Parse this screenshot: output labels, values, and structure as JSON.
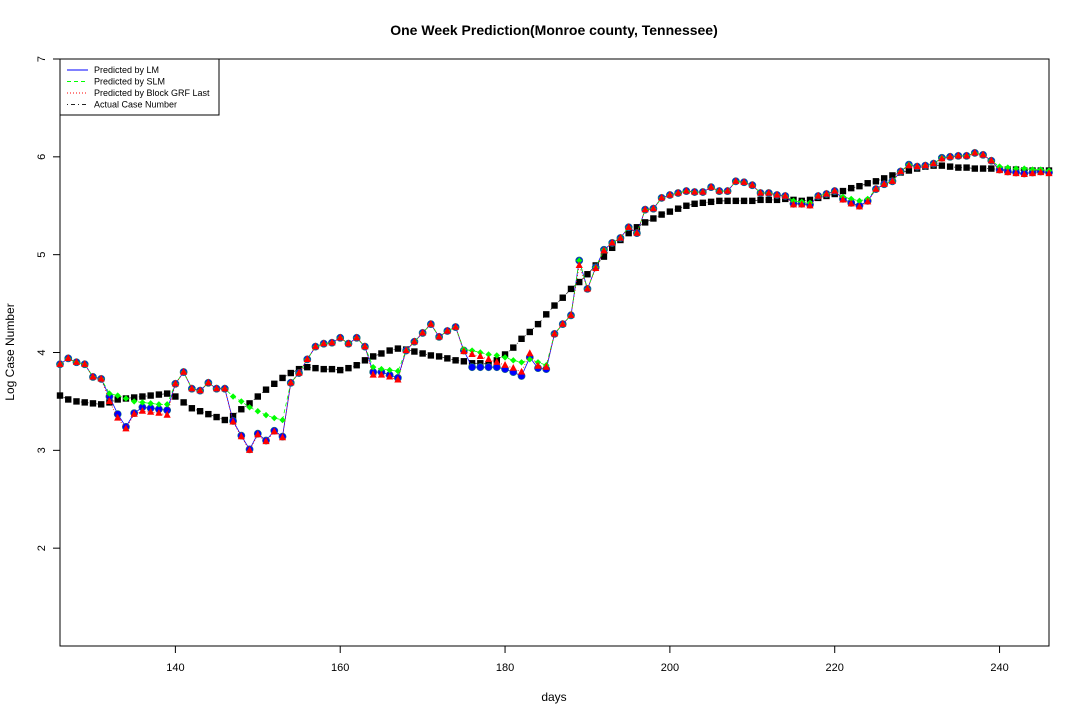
{
  "chart_data": {
    "type": "line",
    "title": "One Week Prediction(Monroe county, Tennessee)",
    "xlabel": "days",
    "ylabel": "Log Case Number",
    "xlim": [
      126,
      246
    ],
    "ylim": [
      1,
      7
    ],
    "xticks": [
      140,
      160,
      180,
      200,
      220,
      240
    ],
    "yticks": [
      2,
      3,
      4,
      5,
      6,
      7
    ],
    "legend_position": "top-left",
    "series": [
      {
        "name": "Predicted by LM",
        "color": "#0000ff",
        "line": "solid",
        "marker": "circle",
        "x": [
          126,
          127,
          128,
          129,
          130,
          131,
          132,
          133,
          134,
          135,
          136,
          137,
          138,
          139,
          140,
          141,
          142,
          143,
          144,
          145,
          146,
          147,
          148,
          149,
          150,
          151,
          152,
          153,
          154,
          155,
          156,
          157,
          158,
          159,
          160,
          161,
          162,
          163,
          164,
          165,
          166,
          167,
          168,
          169,
          170,
          171,
          172,
          173,
          174,
          175,
          176,
          177,
          178,
          179,
          180,
          181,
          182,
          183,
          184,
          185,
          186,
          187,
          188,
          189,
          190,
          191,
          192,
          193,
          194,
          195,
          196,
          197,
          198,
          199,
          200,
          201,
          202,
          203,
          204,
          205,
          206,
          207,
          208,
          209,
          210,
          211,
          212,
          213,
          214,
          215,
          216,
          217,
          218,
          219,
          220,
          221,
          222,
          223,
          224,
          225,
          226,
          227,
          228,
          229,
          230,
          231,
          232,
          233,
          234,
          235,
          236,
          237,
          238,
          239,
          240,
          241,
          242,
          243,
          244,
          245,
          246
        ],
        "values": [
          3.88,
          3.94,
          3.9,
          3.88,
          3.75,
          3.73,
          3.55,
          3.37,
          3.24,
          3.38,
          3.44,
          3.43,
          3.42,
          3.41,
          3.68,
          3.8,
          3.63,
          3.61,
          3.69,
          3.63,
          3.63,
          3.3,
          3.15,
          3.01,
          3.17,
          3.1,
          3.2,
          3.14,
          3.69,
          3.79,
          3.93,
          4.06,
          4.09,
          4.1,
          4.15,
          4.09,
          4.15,
          4.06,
          3.8,
          3.8,
          3.77,
          3.74,
          4.02,
          4.11,
          4.2,
          4.29,
          4.16,
          4.22,
          4.26,
          4.02,
          3.85,
          3.85,
          3.85,
          3.85,
          3.83,
          3.8,
          3.76,
          3.95,
          3.84,
          3.83,
          4.19,
          4.29,
          4.38,
          4.94,
          4.65,
          4.87,
          5.05,
          5.12,
          5.17,
          5.28,
          5.22,
          5.46,
          5.47,
          5.58,
          5.61,
          5.63,
          5.65,
          5.64,
          5.64,
          5.69,
          5.65,
          5.65,
          5.75,
          5.74,
          5.71,
          5.63,
          5.63,
          5.61,
          5.6,
          5.52,
          5.52,
          5.51,
          5.6,
          5.62,
          5.65,
          5.57,
          5.53,
          5.5,
          5.55,
          5.67,
          5.72,
          5.75,
          5.85,
          5.92,
          5.9,
          5.91,
          5.93,
          5.99,
          6.0,
          6.01,
          6.01,
          6.04,
          6.02,
          5.96,
          5.87,
          5.85,
          5.84,
          5.83,
          5.84,
          5.85,
          5.84
        ]
      },
      {
        "name": "Predicted by SLM",
        "color": "#00ff00",
        "line": "dashed",
        "marker": "diamond",
        "x": [
          126,
          127,
          128,
          129,
          130,
          131,
          132,
          133,
          134,
          135,
          136,
          137,
          138,
          139,
          140,
          141,
          142,
          143,
          144,
          145,
          146,
          147,
          148,
          149,
          150,
          151,
          152,
          153,
          154,
          155,
          156,
          157,
          158,
          159,
          160,
          161,
          162,
          163,
          164,
          165,
          166,
          167,
          168,
          169,
          170,
          171,
          172,
          173,
          174,
          175,
          176,
          177,
          178,
          179,
          180,
          181,
          182,
          183,
          184,
          185,
          186,
          187,
          188,
          189,
          190,
          191,
          192,
          193,
          194,
          195,
          196,
          197,
          198,
          199,
          200,
          201,
          202,
          203,
          204,
          205,
          206,
          207,
          208,
          209,
          210,
          211,
          212,
          213,
          214,
          215,
          216,
          217,
          218,
          219,
          220,
          221,
          222,
          223,
          224,
          225,
          226,
          227,
          228,
          229,
          230,
          231,
          232,
          233,
          234,
          235,
          236,
          237,
          238,
          239,
          240,
          241,
          242,
          243,
          244,
          245,
          246
        ],
        "values": [
          3.88,
          3.94,
          3.9,
          3.88,
          3.75,
          3.73,
          3.58,
          3.56,
          3.53,
          3.5,
          3.49,
          3.48,
          3.47,
          3.47,
          3.68,
          3.8,
          3.63,
          3.61,
          3.69,
          3.63,
          3.63,
          3.55,
          3.5,
          3.44,
          3.4,
          3.36,
          3.33,
          3.31,
          3.69,
          3.79,
          3.93,
          4.06,
          4.09,
          4.1,
          4.15,
          4.09,
          4.15,
          4.06,
          3.85,
          3.83,
          3.82,
          3.81,
          4.02,
          4.11,
          4.2,
          4.29,
          4.16,
          4.22,
          4.26,
          4.03,
          4.02,
          4.0,
          3.98,
          3.97,
          3.95,
          3.92,
          3.9,
          3.93,
          3.9,
          3.87,
          4.19,
          4.29,
          4.38,
          4.94,
          4.65,
          4.87,
          5.05,
          5.12,
          5.17,
          5.28,
          5.22,
          5.46,
          5.47,
          5.58,
          5.61,
          5.63,
          5.65,
          5.64,
          5.64,
          5.69,
          5.65,
          5.65,
          5.75,
          5.74,
          5.71,
          5.63,
          5.63,
          5.61,
          5.6,
          5.55,
          5.54,
          5.53,
          5.6,
          5.62,
          5.65,
          5.59,
          5.57,
          5.55,
          5.57,
          5.67,
          5.72,
          5.75,
          5.85,
          5.92,
          5.9,
          5.91,
          5.93,
          5.99,
          6.0,
          6.01,
          6.01,
          6.04,
          6.02,
          5.96,
          5.9,
          5.89,
          5.88,
          5.88,
          5.87,
          5.87,
          5.86
        ]
      },
      {
        "name": "Predicted by Block GRF Last",
        "color": "#ff0000",
        "line": "dotted",
        "marker": "triangle",
        "x": [
          126,
          127,
          128,
          129,
          130,
          131,
          132,
          133,
          134,
          135,
          136,
          137,
          138,
          139,
          140,
          141,
          142,
          143,
          144,
          145,
          146,
          147,
          148,
          149,
          150,
          151,
          152,
          153,
          154,
          155,
          156,
          157,
          158,
          159,
          160,
          161,
          162,
          163,
          164,
          165,
          166,
          167,
          168,
          169,
          170,
          171,
          172,
          173,
          174,
          175,
          176,
          177,
          178,
          179,
          180,
          181,
          182,
          183,
          184,
          185,
          186,
          187,
          188,
          189,
          190,
          191,
          192,
          193,
          194,
          195,
          196,
          197,
          198,
          199,
          200,
          201,
          202,
          203,
          204,
          205,
          206,
          207,
          208,
          209,
          210,
          211,
          212,
          213,
          214,
          215,
          216,
          217,
          218,
          219,
          220,
          221,
          222,
          223,
          224,
          225,
          226,
          227,
          228,
          229,
          230,
          231,
          232,
          233,
          234,
          235,
          236,
          237,
          238,
          239,
          240,
          241,
          242,
          243,
          244,
          245,
          246
        ],
        "values": [
          3.88,
          3.94,
          3.9,
          3.88,
          3.75,
          3.73,
          3.5,
          3.33,
          3.22,
          3.37,
          3.4,
          3.39,
          3.38,
          3.36,
          3.68,
          3.8,
          3.63,
          3.61,
          3.69,
          3.63,
          3.63,
          3.29,
          3.14,
          3.0,
          3.16,
          3.09,
          3.19,
          3.13,
          3.69,
          3.79,
          3.93,
          4.06,
          4.09,
          4.1,
          4.15,
          4.09,
          4.15,
          4.06,
          3.77,
          3.77,
          3.75,
          3.72,
          4.02,
          4.11,
          4.2,
          4.29,
          4.16,
          4.22,
          4.26,
          4.01,
          3.98,
          3.96,
          3.93,
          3.9,
          3.87,
          3.84,
          3.8,
          3.99,
          3.86,
          3.85,
          4.19,
          4.29,
          4.38,
          4.89,
          4.65,
          4.86,
          5.04,
          5.12,
          5.17,
          5.28,
          5.22,
          5.46,
          5.47,
          5.58,
          5.61,
          5.63,
          5.65,
          5.64,
          5.64,
          5.69,
          5.65,
          5.65,
          5.75,
          5.74,
          5.71,
          5.63,
          5.63,
          5.61,
          5.6,
          5.51,
          5.51,
          5.5,
          5.6,
          5.62,
          5.65,
          5.56,
          5.52,
          5.49,
          5.54,
          5.67,
          5.72,
          5.75,
          5.85,
          5.91,
          5.9,
          5.91,
          5.93,
          5.98,
          6.0,
          6.01,
          6.01,
          6.04,
          6.02,
          5.96,
          5.86,
          5.84,
          5.83,
          5.82,
          5.83,
          5.84,
          5.83
        ]
      },
      {
        "name": "Actual Case Number",
        "color": "#000000",
        "line": "dotdash",
        "marker": "square",
        "x": [
          126,
          127,
          128,
          129,
          130,
          131,
          132,
          133,
          134,
          135,
          136,
          137,
          138,
          139,
          140,
          141,
          142,
          143,
          144,
          145,
          146,
          147,
          148,
          149,
          150,
          151,
          152,
          153,
          154,
          155,
          156,
          157,
          158,
          159,
          160,
          161,
          162,
          163,
          164,
          165,
          166,
          167,
          168,
          169,
          170,
          171,
          172,
          173,
          174,
          175,
          176,
          177,
          178,
          179,
          180,
          181,
          182,
          183,
          184,
          185,
          186,
          187,
          188,
          189,
          190,
          191,
          192,
          193,
          194,
          195,
          196,
          197,
          198,
          199,
          200,
          201,
          202,
          203,
          204,
          205,
          206,
          207,
          208,
          209,
          210,
          211,
          212,
          213,
          214,
          215,
          216,
          217,
          218,
          219,
          220,
          221,
          222,
          223,
          224,
          225,
          226,
          227,
          228,
          229,
          230,
          231,
          232,
          233,
          234,
          235,
          236,
          237,
          238,
          239,
          240,
          241,
          242,
          243,
          244,
          245,
          246
        ],
        "values": [
          3.56,
          3.52,
          3.5,
          3.49,
          3.48,
          3.47,
          3.49,
          3.52,
          3.53,
          3.54,
          3.55,
          3.56,
          3.57,
          3.58,
          3.55,
          3.49,
          3.43,
          3.4,
          3.37,
          3.34,
          3.31,
          3.35,
          3.42,
          3.48,
          3.55,
          3.62,
          3.68,
          3.74,
          3.79,
          3.83,
          3.85,
          3.84,
          3.83,
          3.83,
          3.82,
          3.84,
          3.87,
          3.92,
          3.96,
          3.99,
          4.02,
          4.04,
          4.03,
          4.01,
          3.99,
          3.97,
          3.96,
          3.94,
          3.92,
          3.91,
          3.89,
          3.89,
          3.88,
          3.92,
          3.98,
          4.05,
          4.14,
          4.21,
          4.29,
          4.39,
          4.48,
          4.56,
          4.65,
          4.72,
          4.8,
          4.89,
          4.98,
          5.07,
          5.15,
          5.22,
          5.28,
          5.33,
          5.37,
          5.41,
          5.44,
          5.47,
          5.5,
          5.52,
          5.53,
          5.54,
          5.55,
          5.55,
          5.55,
          5.55,
          5.55,
          5.56,
          5.56,
          5.56,
          5.57,
          5.56,
          5.55,
          5.56,
          5.58,
          5.6,
          5.62,
          5.65,
          5.68,
          5.7,
          5.73,
          5.75,
          5.78,
          5.81,
          5.84,
          5.86,
          5.88,
          5.9,
          5.91,
          5.91,
          5.9,
          5.89,
          5.89,
          5.88,
          5.88,
          5.88,
          5.87,
          5.87,
          5.87,
          5.86,
          5.86,
          5.86,
          5.86
        ]
      }
    ]
  }
}
